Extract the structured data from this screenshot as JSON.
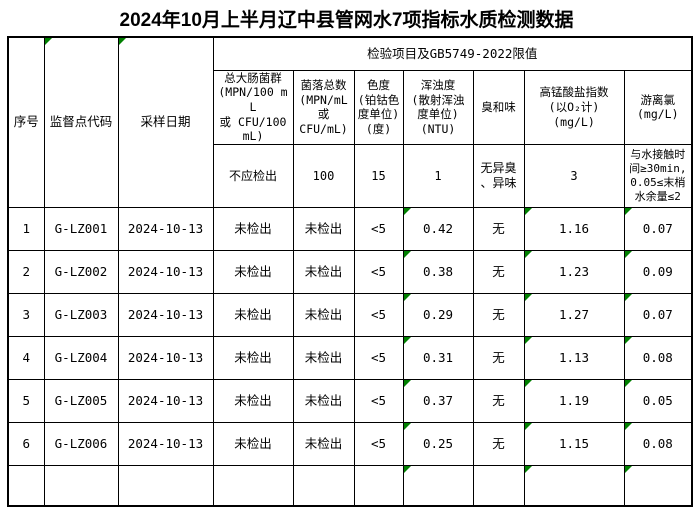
{
  "title": "2024年10月上半月辽中县管网水7项指标水质检测数据",
  "colors": {
    "flag_triangle": "#008000",
    "border": "#000000",
    "background": "#ffffff",
    "text": "#000000"
  },
  "table": {
    "group_header": "检验项目及GB5749-2022限值",
    "columns": [
      {
        "label": "序号",
        "flagged": false
      },
      {
        "label": "监督点代码",
        "flagged": true
      },
      {
        "label": "采样日期",
        "flagged": true
      },
      {
        "label": "总大肠菌群\n(MPN/100 mL\n或 CFU/100\nmL)",
        "limit": "不应检出"
      },
      {
        "label": "菌落总数\n(MPN/mL\n或\nCFU/mL)",
        "limit": "100"
      },
      {
        "label": "色度\n(铂钴色\n度单位)\n(度)",
        "limit": "15"
      },
      {
        "label": "浑浊度\n(散射浑浊\n度单位)\n(NTU)",
        "limit": "1"
      },
      {
        "label": "臭和味",
        "limit": "无异臭\n、异味"
      },
      {
        "label": "高锰酸盐指数\n(以O₂计)\n(mg/L)",
        "limit": "3"
      },
      {
        "label": "游离氯\n(mg/L)",
        "limit": "与水接触时\n间≥30min,\n0.05≤末梢\n水余量≤2"
      }
    ],
    "flagged_data_columns": [
      6,
      8,
      9
    ],
    "rows": [
      [
        "1",
        "G-LZ001",
        "2024-10-13",
        "未检出",
        "未检出",
        "<5",
        "0.42",
        "无",
        "1.16",
        "0.07"
      ],
      [
        "2",
        "G-LZ002",
        "2024-10-13",
        "未检出",
        "未检出",
        "<5",
        "0.38",
        "无",
        "1.23",
        "0.09"
      ],
      [
        "3",
        "G-LZ003",
        "2024-10-13",
        "未检出",
        "未检出",
        "<5",
        "0.29",
        "无",
        "1.27",
        "0.07"
      ],
      [
        "4",
        "G-LZ004",
        "2024-10-13",
        "未检出",
        "未检出",
        "<5",
        "0.31",
        "无",
        "1.13",
        "0.08"
      ],
      [
        "5",
        "G-LZ005",
        "2024-10-13",
        "未检出",
        "未检出",
        "<5",
        "0.37",
        "无",
        "1.19",
        "0.05"
      ],
      [
        "6",
        "G-LZ006",
        "2024-10-13",
        "未检出",
        "未检出",
        "<5",
        "0.25",
        "无",
        "1.15",
        "0.08"
      ]
    ]
  }
}
